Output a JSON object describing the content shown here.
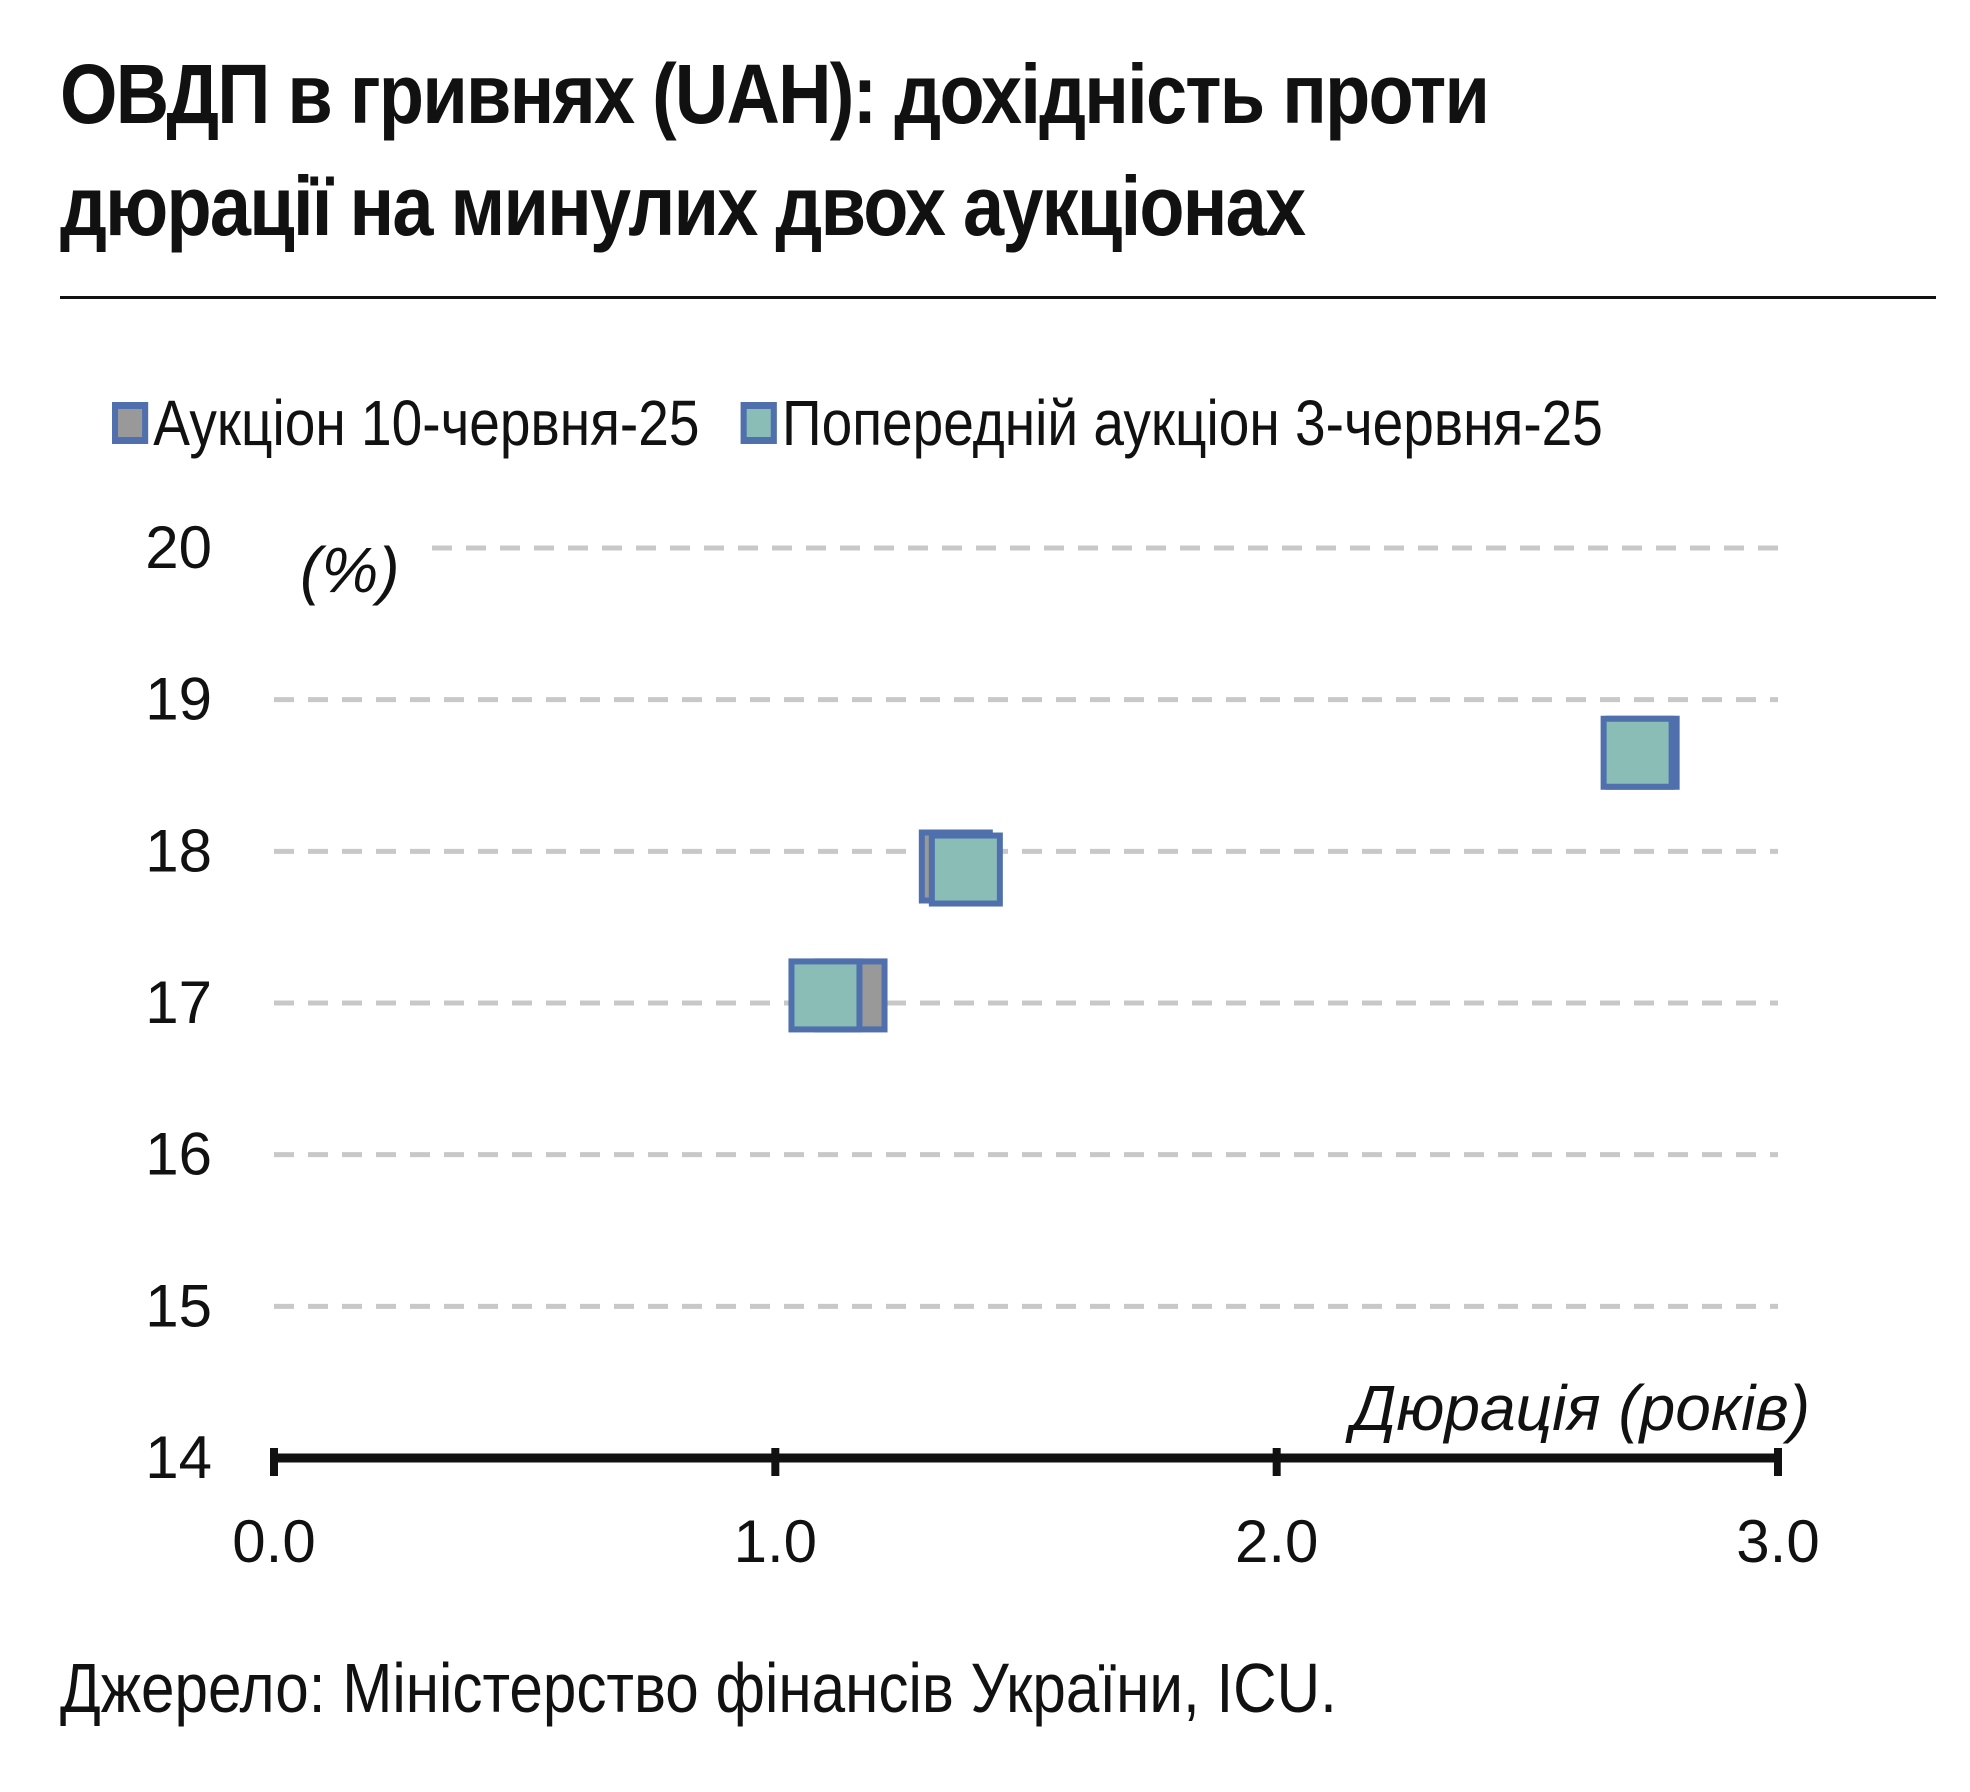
{
  "title_line1": "ОВДП в гривнях (UAH): дохідність проти",
  "title_line2": "дюрації на минулих двох аукціонах",
  "source": "Джерело: Міністерство фінансів України, ICU.",
  "colors": {
    "marker_border": "#4f6fad",
    "series_current_fill": "#999999",
    "series_previous_fill": "#8bbdb7",
    "grid": "#c8c8c8",
    "axis": "#111111"
  },
  "chart_data": {
    "type": "scatter",
    "title": "ОВДП в гривнях (UAH): дохідність проти дюрації на минулих двох аукціонах",
    "xlabel": "Дюрація (років)",
    "ylabel": "(%)",
    "xlim": [
      0,
      3
    ],
    "ylim": [
      14,
      20
    ],
    "x_ticks": [
      "0.0",
      "1.0",
      "2.0",
      "3.0"
    ],
    "y_ticks": [
      "14",
      "15",
      "16",
      "17",
      "18",
      "19",
      "20"
    ],
    "grid": "horizontal dashed",
    "legend_position": "top",
    "series": [
      {
        "name": "Аукціон 10-червня-25",
        "color": "#999999",
        "points": [
          {
            "x": 1.15,
            "y": 17.05
          },
          {
            "x": 1.36,
            "y": 17.9
          },
          {
            "x": 2.73,
            "y": 18.65
          }
        ]
      },
      {
        "name": "Попередній аукціон 3-червня-25",
        "color": "#8bbdb7",
        "points": [
          {
            "x": 1.1,
            "y": 17.05
          },
          {
            "x": 1.38,
            "y": 17.88
          },
          {
            "x": 2.72,
            "y": 18.65
          }
        ]
      }
    ]
  }
}
